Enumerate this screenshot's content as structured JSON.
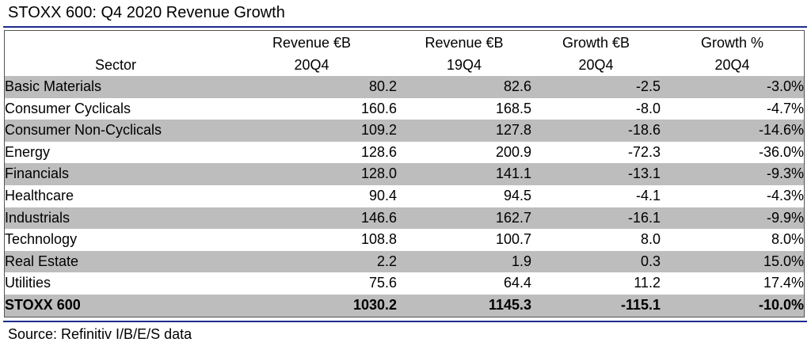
{
  "title": "STOXX 600: Q4 2020 Revenue Growth",
  "source": "Source: Refinitiv I/B/E/S data",
  "colors": {
    "rule": "#1f2b8f",
    "shade": "#bdbdbd"
  },
  "chart_data": {
    "type": "table",
    "title": "STOXX 600: Q4 2020 Revenue Growth",
    "columns": [
      {
        "line1": "",
        "line2": "Sector"
      },
      {
        "line1": "Revenue €B",
        "line2": "20Q4"
      },
      {
        "line1": "Revenue €B",
        "line2": "19Q4"
      },
      {
        "line1": "Growth €B",
        "line2": "20Q4"
      },
      {
        "line1": "Growth %",
        "line2": "20Q4"
      }
    ],
    "rows": [
      [
        "Basic Materials",
        "80.2",
        "82.6",
        "-2.5",
        "-3.0%"
      ],
      [
        "Consumer Cyclicals",
        "160.6",
        "168.5",
        "-8.0",
        "-4.7%"
      ],
      [
        "Consumer Non-Cyclicals",
        "109.2",
        "127.8",
        "-18.6",
        "-14.6%"
      ],
      [
        "Energy",
        "128.6",
        "200.9",
        "-72.3",
        "-36.0%"
      ],
      [
        "Financials",
        "128.0",
        "141.1",
        "-13.1",
        "-9.3%"
      ],
      [
        "Healthcare",
        "90.4",
        "94.5",
        "-4.1",
        "-4.3%"
      ],
      [
        "Industrials",
        "146.6",
        "162.7",
        "-16.1",
        "-9.9%"
      ],
      [
        "Technology",
        "108.8",
        "100.7",
        "8.0",
        "8.0%"
      ],
      [
        "Real Estate",
        "2.2",
        "1.9",
        "0.3",
        "15.0%"
      ],
      [
        "Utilities",
        "75.6",
        "64.4",
        "11.2",
        "17.4%"
      ]
    ],
    "total": [
      "STOXX 600",
      "1030.2",
      "1145.3",
      "-115.1",
      "-10.0%"
    ]
  },
  "source_note": "Source: Refinitiv I/B/E/S data"
}
